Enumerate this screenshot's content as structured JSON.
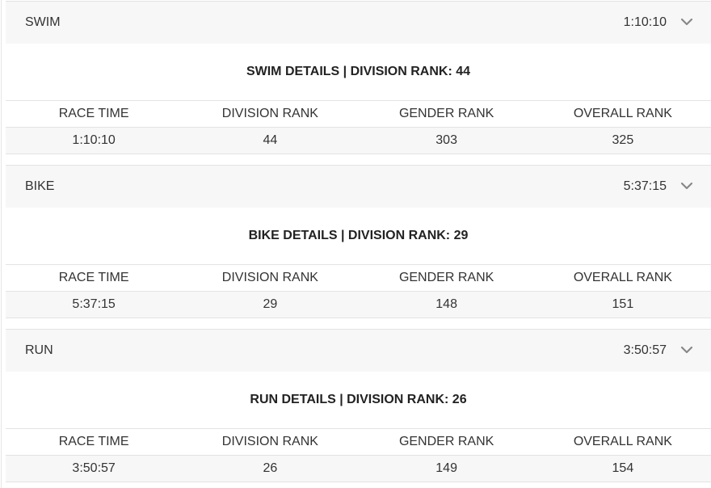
{
  "columns": [
    "RACE TIME",
    "DIVISION RANK",
    "GENDER RANK",
    "OVERALL RANK"
  ],
  "icons": {
    "expand": "chevron-down-icon"
  },
  "colors": {
    "header_bg": "#f7f7f7",
    "row_bg": "#f7f7f7",
    "border": "#e3e3e3",
    "chevron": "#888888"
  },
  "segments": [
    {
      "name": "SWIM",
      "time": "1:10:10",
      "details_title": "SWIM DETAILS | DIVISION RANK: 44",
      "values": [
        "1:10:10",
        "44",
        "303",
        "325"
      ]
    },
    {
      "name": "BIKE",
      "time": "5:37:15",
      "details_title": "BIKE DETAILS | DIVISION RANK: 29",
      "values": [
        "5:37:15",
        "29",
        "148",
        "151"
      ]
    },
    {
      "name": "RUN",
      "time": "3:50:57",
      "details_title": "RUN DETAILS | DIVISION RANK: 26",
      "values": [
        "3:50:57",
        "26",
        "149",
        "154"
      ]
    }
  ]
}
